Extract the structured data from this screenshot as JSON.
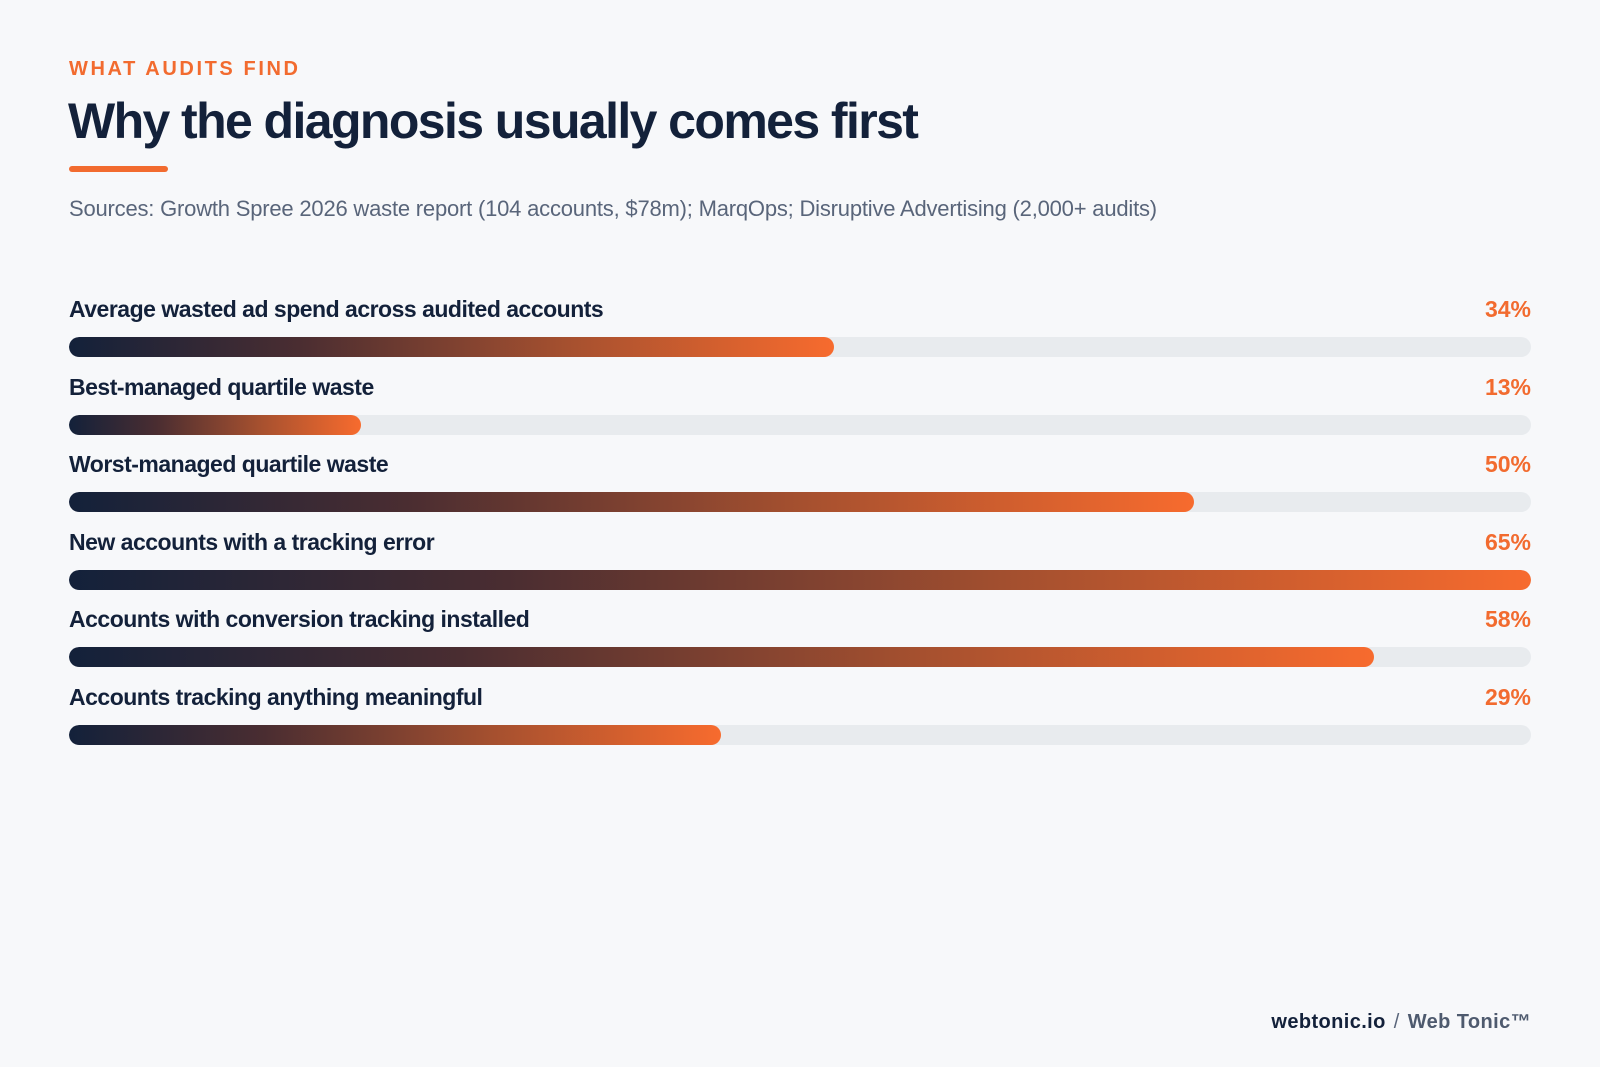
{
  "header": {
    "eyebrow": "WHAT AUDITS FIND",
    "title": "Why the diagnosis usually comes first",
    "sources": "Sources: Growth Spree 2026 waste report (104 accounts, $78m); MarqOps; Disruptive Advertising (2,000+ audits)"
  },
  "colors": {
    "accent": "#f26b2f",
    "dark": "#13213a",
    "track": "#e8ebee",
    "background": "#f7f8fa"
  },
  "chart_data": {
    "type": "bar",
    "orientation": "horizontal",
    "grid": false,
    "xlim": [
      0,
      65
    ],
    "categories": [
      "Average wasted ad spend across audited accounts",
      "Best-managed quartile waste",
      "Worst-managed quartile waste",
      "New accounts with a tracking error",
      "Accounts with conversion tracking installed",
      "Accounts tracking anything meaningful"
    ],
    "values": [
      34,
      13,
      50,
      65,
      58,
      29
    ],
    "value_labels": [
      "34%",
      "13%",
      "50%",
      "65%",
      "58%",
      "29%"
    ]
  },
  "footer": {
    "domain": "webtonic.io",
    "separator": "/",
    "brand": "Web Tonic™"
  }
}
